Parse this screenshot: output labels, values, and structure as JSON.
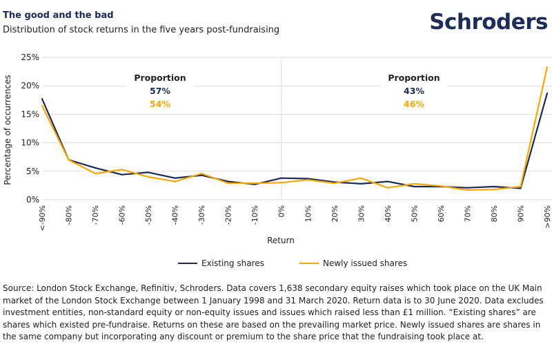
{
  "header": {
    "title": "The good and the bad",
    "subtitle": "Distribution of stock returns in the five years post-fundraising",
    "logo": "Schroders"
  },
  "colors": {
    "existing": "#1b2a52",
    "new": "#f5a800",
    "grid": "#dddddd",
    "title": "#1b2a52"
  },
  "chart_data": {
    "type": "line",
    "title": "Distribution of stock returns in the five years post-fundraising",
    "xlabel": "Return",
    "ylabel": "Percentage of occurrences",
    "categories": [
      "<-90%",
      "-80%",
      "-70%",
      "-60%",
      "-50%",
      "-40%",
      "-30%",
      "-20%",
      "-10%",
      "0%",
      "10%",
      "20%",
      "30%",
      "40%",
      "50%",
      "60%",
      "70%",
      "80%",
      "90%",
      ">90%"
    ],
    "ylim": [
      0,
      25
    ],
    "yticks": [
      0,
      5,
      10,
      15,
      20,
      25
    ],
    "ytick_labels": [
      "0%",
      "5%",
      "10%",
      "15%",
      "20%",
      "25%"
    ],
    "grid": true,
    "legend_position": "bottom",
    "series": [
      {
        "name": "Existing shares",
        "color": "#1b2a52",
        "values": [
          17.7,
          7.0,
          5.6,
          4.4,
          4.8,
          3.8,
          4.3,
          3.2,
          2.7,
          3.8,
          3.7,
          3.1,
          2.8,
          3.2,
          2.3,
          2.3,
          2.1,
          2.3,
          2.0,
          18.7
        ]
      },
      {
        "name": "Newly issued shares",
        "color": "#f5a800",
        "values": [
          16.5,
          7.0,
          4.6,
          5.3,
          4.0,
          3.2,
          4.6,
          2.9,
          2.9,
          3.0,
          3.5,
          2.9,
          3.8,
          2.1,
          2.8,
          2.4,
          1.7,
          1.8,
          2.3,
          23.3
        ]
      }
    ],
    "annotations": [
      {
        "side": "negative",
        "label": "Proportion",
        "existing": "57%",
        "new": "54%"
      },
      {
        "side": "positive",
        "label": "Proportion",
        "existing": "43%",
        "new": "46%"
      }
    ],
    "divider_at": "0%"
  },
  "legend": {
    "items": [
      {
        "label": "Existing shares",
        "color": "#1b2a52"
      },
      {
        "label": "Newly issued shares",
        "color": "#f5a800"
      }
    ]
  },
  "source": "Source: London Stock Exchange, Refinitiv, Schroders. Data covers 1,638 secondary equity raises which took place on the UK Main market of the London Stock Exchange between 1 January 1998 and 31 March 2020. Return data is to 30 June 2020. Data excludes investment entities, non-standard equity or non-equity issues and issues which raised less than £1 million. “Existing shares” are shares which existed pre-fundraise. Returns on these are based on the prevailing market price. Newly issued shares are shares in the same company but incorporating any discount or premium to the share price that the fundraising took place at."
}
